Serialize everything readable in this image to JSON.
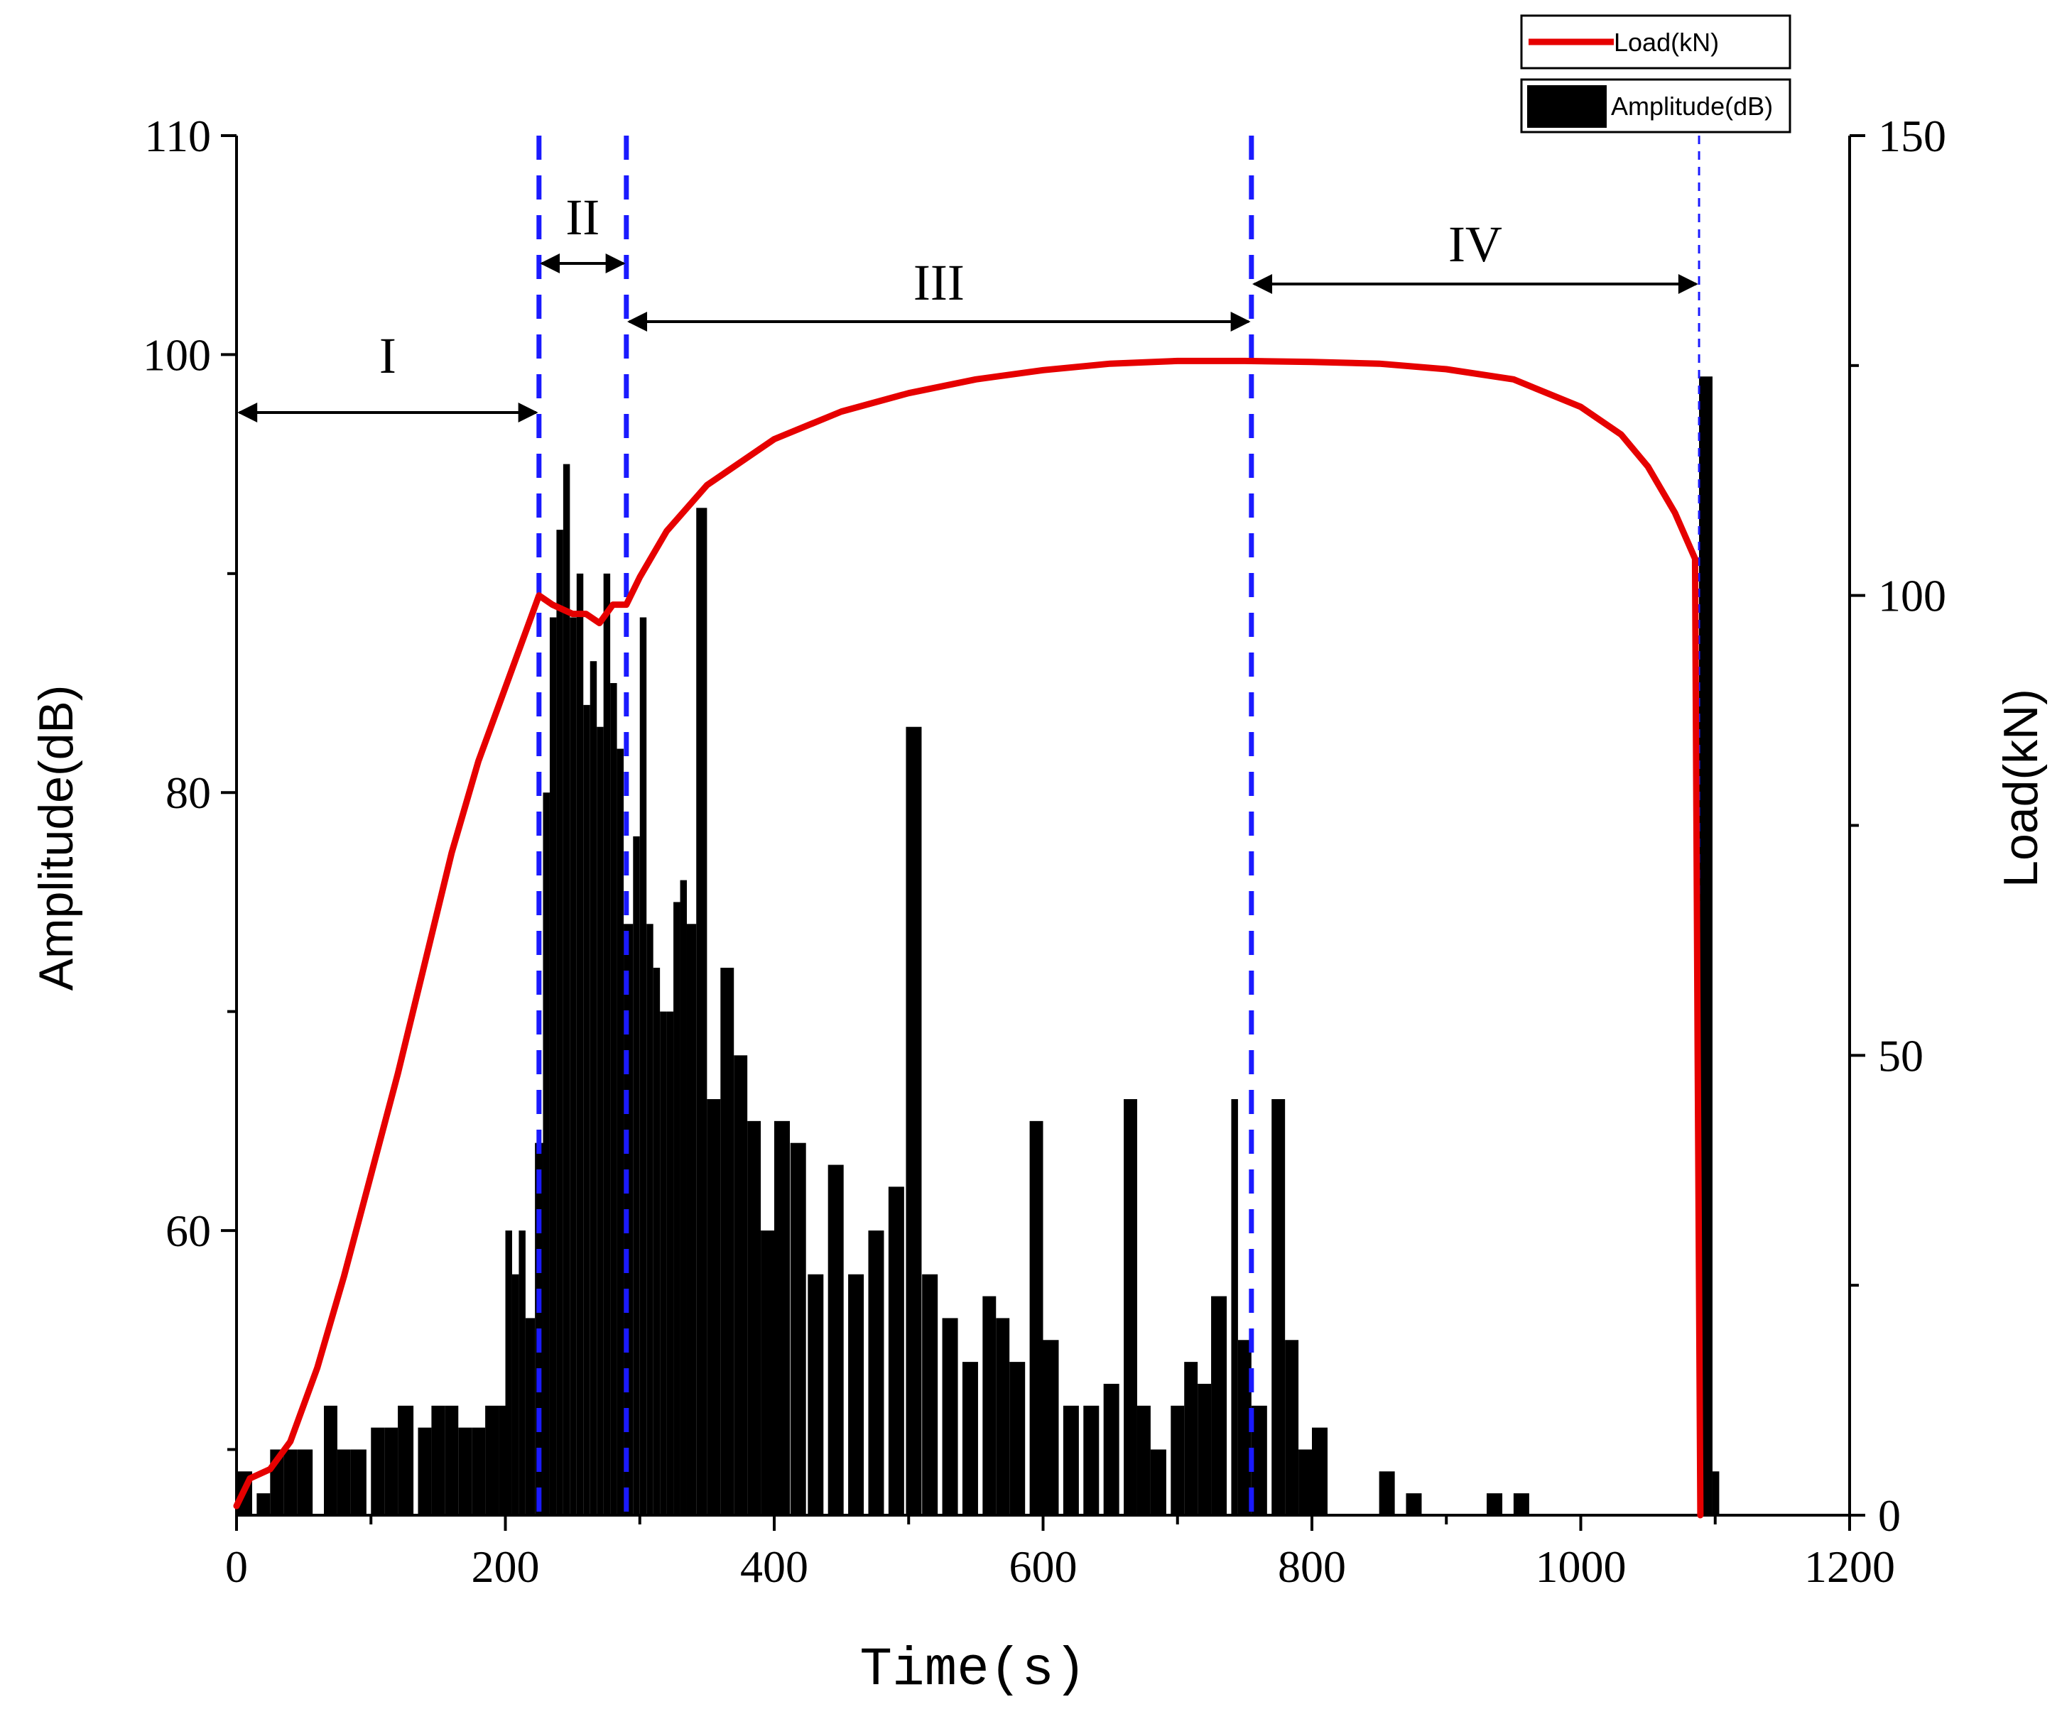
{
  "chart_data": {
    "type": "bar+line",
    "x_axis": {
      "label": "Time(s)",
      "range": [
        0,
        1200
      ],
      "ticks": [
        0,
        200,
        400,
        600,
        800,
        1000,
        1200
      ]
    },
    "y_axis_left": {
      "label": "Amplitude(dB)",
      "range": [
        47,
        110
      ],
      "ticks": [
        60,
        80,
        100,
        110
      ]
    },
    "y_axis_right": {
      "label": "Load(kN)",
      "range": [
        0,
        150
      ],
      "ticks": [
        0,
        50,
        100,
        150
      ]
    },
    "legend": {
      "placement": "top-right",
      "entries": [
        {
          "name": "Load(kN)",
          "symbol": "line",
          "color": "#e60000"
        },
        {
          "name": "Amplitude(dB)",
          "symbol": "box",
          "color": "#000000"
        }
      ]
    },
    "stages": [
      {
        "label": "I",
        "start": 0,
        "end": 225
      },
      {
        "label": "II",
        "start": 225,
        "end": 290
      },
      {
        "label": "III",
        "start": 290,
        "end": 755
      },
      {
        "label": "IV",
        "start": 755,
        "end": 1088
      }
    ],
    "stage_boundaries": [
      225,
      290,
      755,
      1088
    ],
    "colors": {
      "load_line": "#e60000",
      "amplitude_bars": "#000000",
      "stage_lines": "#1a1aff"
    },
    "series": [
      {
        "name": "Load(kN)",
        "axis": "right",
        "x": [
          0,
          10,
          25,
          40,
          60,
          80,
          100,
          120,
          140,
          160,
          180,
          200,
          215,
          225,
          235,
          250,
          260,
          270,
          280,
          290,
          300,
          320,
          350,
          400,
          450,
          500,
          550,
          600,
          650,
          700,
          750,
          800,
          850,
          900,
          950,
          1000,
          1030,
          1050,
          1070,
          1085,
          1087,
          1089
        ],
        "y": [
          1,
          4,
          5,
          8,
          16,
          26,
          37,
          48,
          60,
          72,
          82,
          90,
          96,
          100,
          99,
          98,
          98,
          97,
          99,
          99,
          102,
          107,
          112,
          117,
          120,
          122,
          123.5,
          124.5,
          125.2,
          125.5,
          125.5,
          125.4,
          125.2,
          124.6,
          123.5,
          120.5,
          117.5,
          114,
          109,
          104,
          50,
          0
        ]
      },
      {
        "name": "Amplitude(dB)",
        "axis": "left",
        "type": "bar",
        "x": [
          0,
          15,
          25,
          35,
          45,
          65,
          75,
          85,
          100,
          110,
          120,
          135,
          145,
          155,
          165,
          175,
          185,
          195,
          200,
          205,
          210,
          215,
          222,
          228,
          233,
          238,
          243,
          248,
          253,
          258,
          263,
          268,
          273,
          278,
          283,
          288,
          295,
          300,
          305,
          310,
          315,
          320,
          325,
          330,
          335,
          342,
          350,
          360,
          370,
          380,
          390,
          400,
          412,
          425,
          440,
          455,
          470,
          485,
          498,
          510,
          525,
          540,
          555,
          565,
          575,
          590,
          600,
          615,
          630,
          645,
          660,
          670,
          680,
          695,
          705,
          715,
          725,
          740,
          745,
          755,
          770,
          780,
          790,
          800,
          850,
          870,
          930,
          950,
          1088,
          1098
        ],
        "y": [
          49,
          48,
          50,
          50,
          50,
          52,
          50,
          50,
          51,
          51,
          52,
          51,
          52,
          52,
          51,
          51,
          52,
          52,
          60,
          58,
          60,
          56,
          64,
          80,
          88,
          92,
          95,
          88,
          90,
          84,
          86,
          83,
          90,
          85,
          82,
          74,
          78,
          88,
          74,
          72,
          70,
          70,
          75,
          76,
          74,
          93,
          66,
          72,
          68,
          65,
          60,
          65,
          64,
          58,
          63,
          58,
          60,
          62,
          83,
          58,
          56,
          54,
          57,
          56,
          54,
          65,
          55,
          52,
          52,
          53,
          66,
          52,
          50,
          52,
          54,
          53,
          57,
          66,
          55,
          52,
          66,
          55,
          50,
          51,
          49,
          48,
          48,
          48,
          99,
          49
        ]
      }
    ]
  }
}
